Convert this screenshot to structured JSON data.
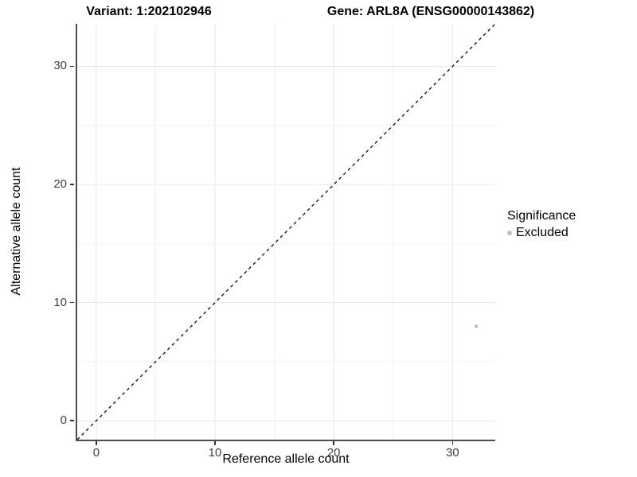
{
  "titles": {
    "variant": "Variant: 1:202102946",
    "gene": "Gene: ARL8A (ENSG00000143862)"
  },
  "chart_data": {
    "type": "scatter",
    "xlabel": "Reference allele count",
    "ylabel": "Alternative allele count",
    "xlim": [
      -1.6,
      33.6
    ],
    "ylim": [
      -1.6,
      33.6
    ],
    "x_ticks": [
      0,
      10,
      20,
      30
    ],
    "y_ticks": [
      0,
      10,
      20,
      30
    ],
    "grid": {
      "major": [
        0,
        10,
        20,
        30
      ],
      "minor": [
        5,
        15,
        25
      ],
      "on": true
    },
    "reference_line": {
      "kind": "identity",
      "slope": 1,
      "intercept": 0,
      "style": "dashed"
    },
    "series": [
      {
        "name": "Excluded",
        "points": [
          {
            "x": 32,
            "y": 8
          }
        ]
      }
    ],
    "legend": {
      "title": "Significance",
      "position": "right",
      "items": [
        {
          "label": "Excluded",
          "color": "#bdbdbd"
        }
      ]
    }
  },
  "colors": {
    "background": "#ffffff",
    "axis_line": "#4d4d4d",
    "grid_major": "#e8e8e8",
    "grid_minor": "#f2f2f2",
    "tick_mark": "#333333",
    "tick_label": "#404040",
    "title_text": "#000000",
    "reference_line": "#1a1a1a",
    "point": "#bdbdbd"
  }
}
